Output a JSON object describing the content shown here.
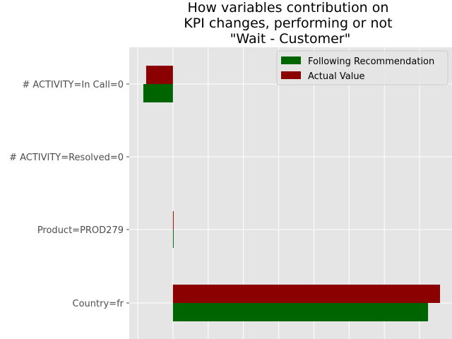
{
  "chart_data": {
    "type": "bar",
    "orientation": "horizontal",
    "title": "How variables contribution on\nKPI changes, performing or not\n\"Wait - Customer\"",
    "xlabel": "",
    "ylabel": "",
    "categories": [
      "# ACTIVITY=In Call=0",
      "# ACTIVITY=Resolved=0",
      "Product=PROD279",
      "Country=fr"
    ],
    "series": [
      {
        "name": "Following Recommendation",
        "color": "#006400",
        "values": [
          -0.42,
          0.0,
          0.005,
          3.62
        ]
      },
      {
        "name": "Actual Value",
        "color": "#8b0000",
        "values": [
          -0.38,
          0.0,
          0.005,
          3.79
        ]
      }
    ],
    "xlim": [
      -0.62,
      3.96
    ],
    "grid": true,
    "legend_position": "top-right",
    "background": "#e5e5e5"
  }
}
